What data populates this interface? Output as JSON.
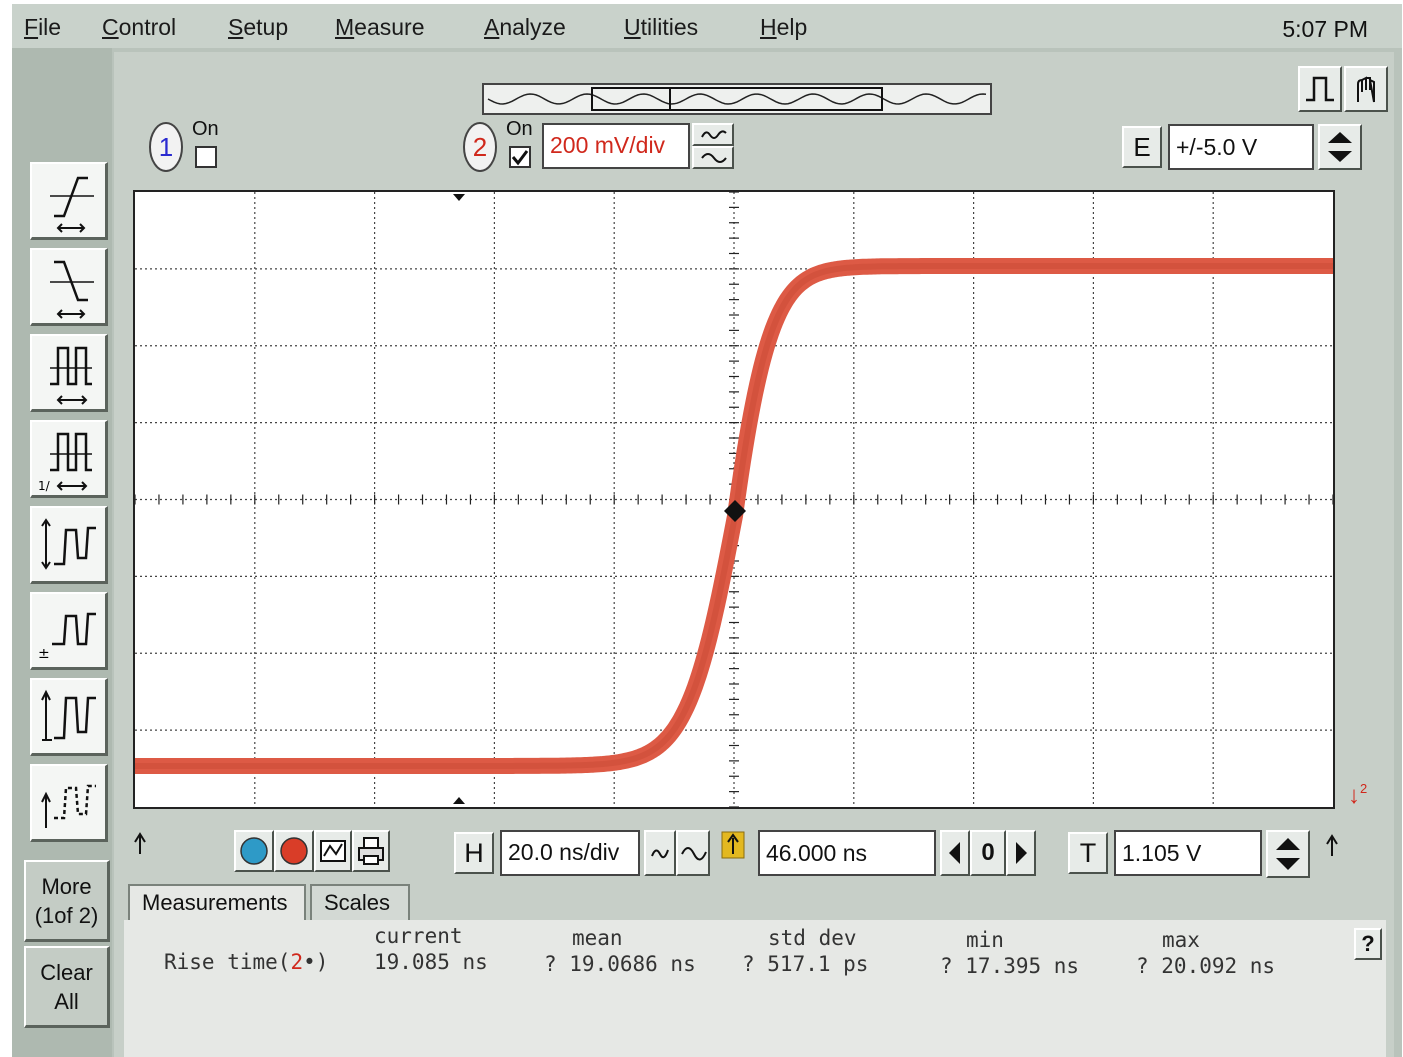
{
  "menu": {
    "items": [
      {
        "label": "File",
        "mnemonic": "F",
        "rest": "ile"
      },
      {
        "label": "Control",
        "mnemonic": "C",
        "rest": "ontrol"
      },
      {
        "label": "Setup",
        "mnemonic": "S",
        "rest": "etup"
      },
      {
        "label": "Measure",
        "mnemonic": "M",
        "rest": "easure"
      },
      {
        "label": "Analyze",
        "mnemonic": "A",
        "rest": "nalyze"
      },
      {
        "label": "Utilities",
        "mnemonic": "U",
        "rest": "tilities"
      },
      {
        "label": "Help",
        "mnemonic": "H",
        "rest": "elp"
      }
    ],
    "clock": "5:07 PM"
  },
  "sidebar": {
    "more_line1": "More",
    "more_line2": "(1of 2)",
    "clear_line1": "Clear",
    "clear_line2": "All",
    "measure_buttons": [
      "rise-time-icon",
      "fall-time-icon",
      "period-icon",
      "frequency-icon",
      "vpp-icon",
      "vamp-icon",
      "vtop-icon",
      "vbase-icon"
    ]
  },
  "channels": {
    "ch1": {
      "number": "1",
      "on_label": "On",
      "checked": false,
      "color": "#2a2ad0"
    },
    "ch2": {
      "number": "2",
      "on_label": "On",
      "checked": true,
      "scale": "200 mV/div",
      "color": "#d0281c"
    }
  },
  "external": {
    "label": "E",
    "range": "+/-5.0 V"
  },
  "timebase": {
    "h_label": "H",
    "scale": "20.0 ns/div",
    "position": "46.000 ns",
    "zero_label": "0",
    "t_label": "T",
    "trigger_level": "1.105 V"
  },
  "tabs": [
    "Measurements",
    "Scales"
  ],
  "measurements": {
    "headers": {
      "current": "current",
      "mean": "mean",
      "std_dev": "std dev",
      "min": "min",
      "max": "max"
    },
    "rows": [
      {
        "name": "Rise time(",
        "channel": "2",
        "suffix": "•)",
        "current": "19.085 ns",
        "mean": "? 19.0686 ns",
        "std_dev": "? 517.1 ps",
        "min": "? 17.395 ns",
        "max": "? 20.092 ns"
      }
    ],
    "help": "?"
  },
  "trace_color": "#dd5a45",
  "ground_marker": "2"
}
